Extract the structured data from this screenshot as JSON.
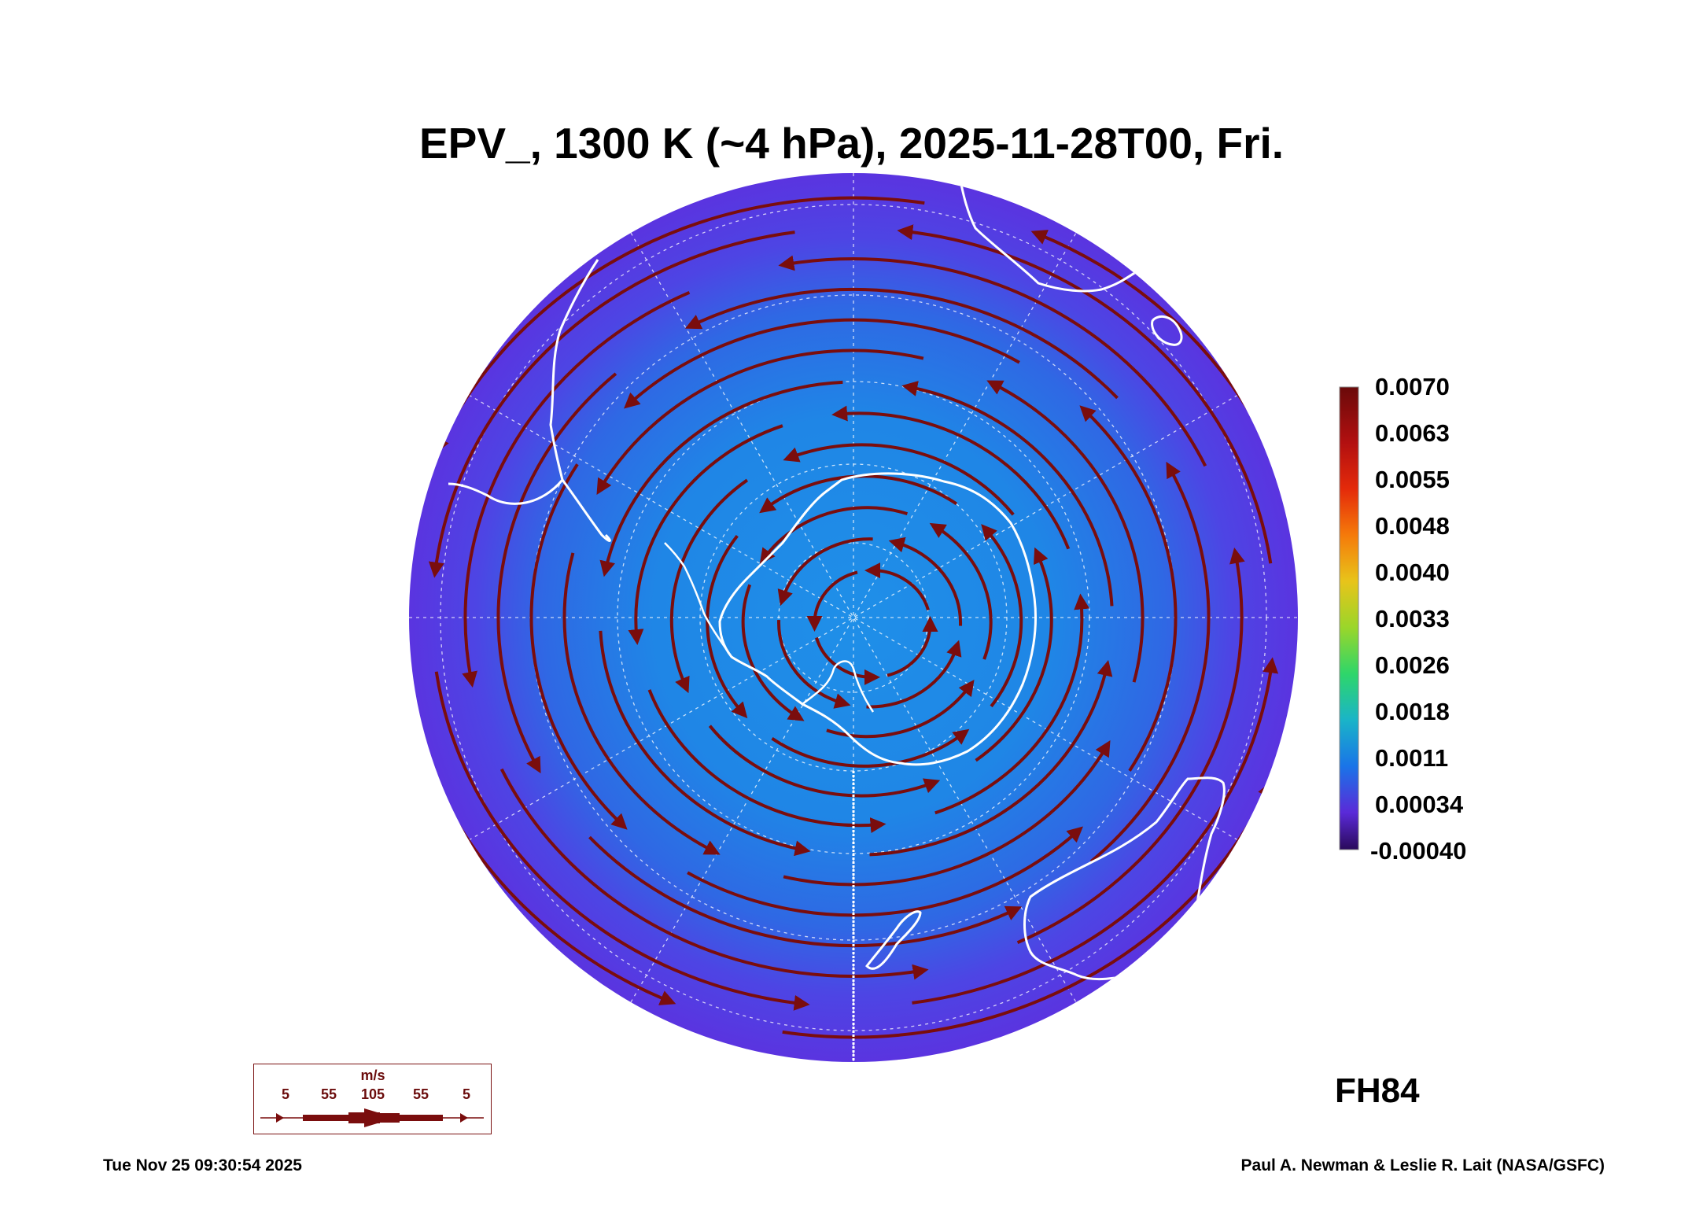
{
  "title": "EPV_, 1300 K (~4 hPa), 2025-11-28T00, Fri.",
  "colorbar": {
    "labels": [
      "0.0070",
      "0.0063",
      "0.0055",
      "0.0048",
      "0.0040",
      "0.0033",
      "0.0026",
      "0.0018",
      "0.0011",
      "0.00034",
      "-0.00040"
    ],
    "colors": [
      "#6a0a0a",
      "#b21010",
      "#e42a0a",
      "#f57a0a",
      "#e8c41a",
      "#9ad62a",
      "#2ed66a",
      "#1ab4c8",
      "#1a74e8",
      "#5a2ad8",
      "#2a0a5a"
    ]
  },
  "map": {
    "projection": "south polar stereographic",
    "fill_outer": "#5b3be6",
    "fill_inner": "#1f86e6",
    "streamline_color": "#7a0d0d",
    "coastline_color": "#ffffff",
    "grid_color": "#ffffff"
  },
  "wind_legend": {
    "unit": "m/s",
    "ticks": [
      "5",
      "55",
      "105",
      "55",
      "5"
    ]
  },
  "forecast_hour": "FH84",
  "footer": {
    "timestamp": "Tue Nov 25 09:30:54 2025",
    "credit": "Paul A. Newman & Leslie R. Lait (NASA/GSFC)"
  }
}
